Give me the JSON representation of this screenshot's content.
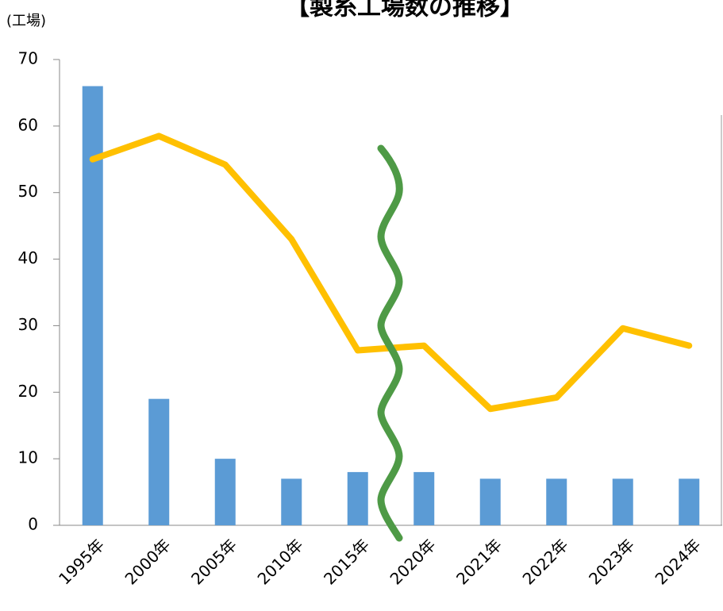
{
  "chart_data": {
    "type": "combo",
    "title": "【製糸工場数の推移】",
    "y_label": "(工場)",
    "categories": [
      "1995年",
      "2000年",
      "2005年",
      "2010年",
      "2015年",
      "2020年",
      "2021年",
      "2022年",
      "2023年",
      "2024年"
    ],
    "series": [
      {
        "kind": "bar",
        "color": "#5b9bd5",
        "values": [
          66,
          19,
          10,
          7,
          8,
          8,
          7,
          7,
          7,
          7
        ]
      },
      {
        "kind": "line",
        "color": "#ffc000",
        "values": [
          55,
          58.5,
          54.2,
          43,
          26.3,
          27,
          17.5,
          19.2,
          29.6,
          27
        ]
      }
    ],
    "ylim": [
      0,
      70
    ],
    "yticks": [
      0,
      10,
      20,
      30,
      40,
      50,
      60,
      70
    ]
  }
}
